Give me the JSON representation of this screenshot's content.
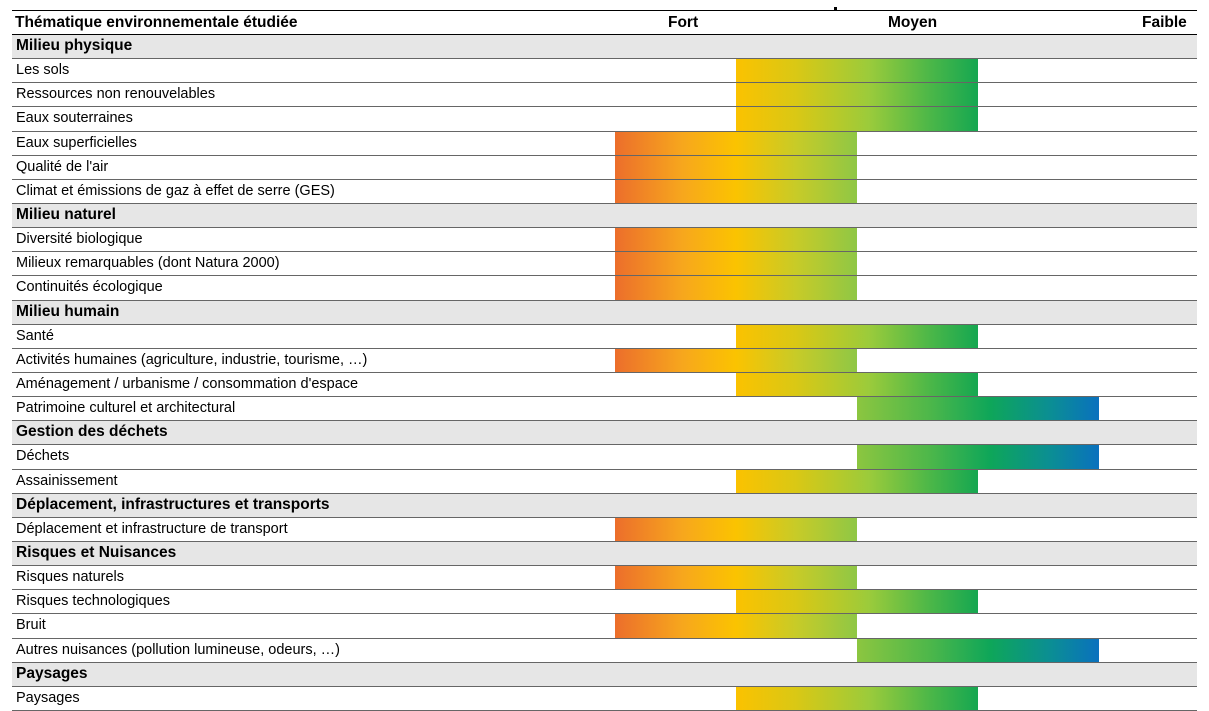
{
  "table": {
    "headers": {
      "theme": "Thématique environnementale étudiée",
      "fort": "Fort",
      "moyen": "Moyen",
      "faible": "Faible"
    },
    "rows": [
      {
        "type": "section",
        "label": "Milieu physique"
      },
      {
        "type": "item",
        "label": "Les sols",
        "level": "moyen"
      },
      {
        "type": "item",
        "label": "Ressources non renouvelables",
        "level": "moyen"
      },
      {
        "type": "item",
        "label": "Eaux souterraines",
        "level": "moyen"
      },
      {
        "type": "item",
        "label": "Eaux superficielles",
        "level": "fort-moyen"
      },
      {
        "type": "item",
        "label": "Qualité de l'air",
        "level": "fort-moyen"
      },
      {
        "type": "item",
        "label": "Climat et émissions de gaz à effet de serre (GES)",
        "level": "fort-moyen"
      },
      {
        "type": "section",
        "label": "Milieu naturel"
      },
      {
        "type": "item",
        "label": "Diversité biologique",
        "level": "fort-moyen"
      },
      {
        "type": "item",
        "label": "Milieux remarquables (dont Natura 2000)",
        "level": "fort-moyen"
      },
      {
        "type": "item",
        "label": "Continuités écologique",
        "level": "fort-moyen"
      },
      {
        "type": "section",
        "label": "Milieu humain"
      },
      {
        "type": "item",
        "label": "Santé",
        "level": "moyen"
      },
      {
        "type": "item",
        "label": "Activités humaines (agriculture, industrie, tourisme, …)",
        "level": "fort-moyen"
      },
      {
        "type": "item",
        "label": "Aménagement / urbanisme / consommation d'espace",
        "level": "moyen"
      },
      {
        "type": "item",
        "label": "Patrimoine culturel et architectural",
        "level": "moyen-faible"
      },
      {
        "type": "section",
        "label": "Gestion des déchets"
      },
      {
        "type": "item",
        "label": "Déchets",
        "level": "moyen-faible"
      },
      {
        "type": "item",
        "label": "Assainissement",
        "level": "moyen"
      },
      {
        "type": "section",
        "label": "Déplacement, infrastructures et transports"
      },
      {
        "type": "item",
        "label": "Déplacement et infrastructure de transport",
        "level": "fort-moyen"
      },
      {
        "type": "section",
        "label": "Risques et Nuisances"
      },
      {
        "type": "item",
        "label": "Risques naturels",
        "level": "fort-moyen"
      },
      {
        "type": "item",
        "label": "Risques technologiques",
        "level": "moyen"
      },
      {
        "type": "item",
        "label": "Bruit",
        "level": "fort-moyen"
      },
      {
        "type": "item",
        "label": "Autres nuisances (pollution lumineuse, odeurs, …)",
        "level": "moyen-faible"
      },
      {
        "type": "section",
        "label": "Paysages"
      },
      {
        "type": "item",
        "label": "Paysages",
        "level": "moyen"
      }
    ]
  }
}
